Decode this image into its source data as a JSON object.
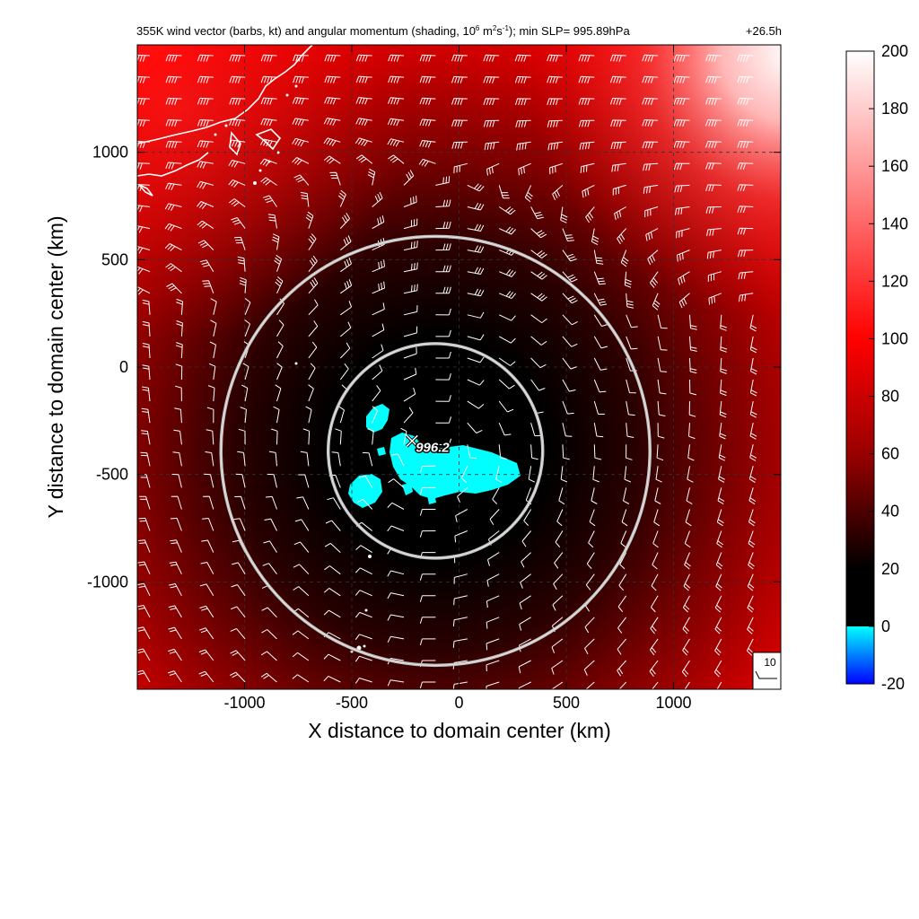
{
  "chart_data": {
    "type": "heatmap",
    "title": {
      "main": "355K wind vector (barbs, kt) and angular momentum (shading, 10",
      "exp1": "6",
      "mid1": " m",
      "exp2": "2",
      "mid2": "s",
      "exp3": "-1",
      "end": "); min SLP= 995.89hPa",
      "time": "+26.5h"
    },
    "xlabel": "X distance to domain center (km)",
    "ylabel": "Y distance to domain center (km)",
    "xlim": [
      -1500,
      1500
    ],
    "ylim": [
      -1500,
      1500
    ],
    "xticks": [
      {
        "value": -1000,
        "label": "-1000"
      },
      {
        "value": -500,
        "label": "-500"
      },
      {
        "value": 0,
        "label": "0"
      },
      {
        "value": 500,
        "label": "500"
      },
      {
        "value": 1000,
        "label": "1000"
      }
    ],
    "yticks": [
      {
        "value": 1000,
        "label": "1000"
      },
      {
        "value": 500,
        "label": "500"
      },
      {
        "value": 0,
        "label": "0"
      },
      {
        "value": -500,
        "label": "-500"
      },
      {
        "value": -1000,
        "label": "-1000"
      }
    ],
    "grid": true,
    "colorbar": {
      "range": [
        -20,
        200
      ],
      "ticks": [
        {
          "value": 200,
          "label": "200"
        },
        {
          "value": 180,
          "label": "180"
        },
        {
          "value": 160,
          "label": "160"
        },
        {
          "value": 140,
          "label": "140"
        },
        {
          "value": 120,
          "label": "120"
        },
        {
          "value": 100,
          "label": "100"
        },
        {
          "value": 80,
          "label": "80"
        },
        {
          "value": 60,
          "label": "60"
        },
        {
          "value": 40,
          "label": "40"
        },
        {
          "value": 20,
          "label": "20"
        },
        {
          "value": 0,
          "label": "0"
        },
        {
          "value": -20,
          "label": "-20"
        }
      ],
      "stops": [
        {
          "value": -20,
          "color": "#0000ff"
        },
        {
          "value": 0,
          "color": "#00ffff"
        },
        {
          "value": 0.01,
          "color": "#000000"
        },
        {
          "value": 20,
          "color": "#000000"
        },
        {
          "value": 60,
          "color": "#990000"
        },
        {
          "value": 100,
          "color": "#ff0000"
        },
        {
          "value": 140,
          "color": "#ff6666"
        },
        {
          "value": 200,
          "color": "#ffffff"
        }
      ]
    },
    "center": {
      "x": -110,
      "y": -390,
      "label": "996.2"
    },
    "circles": [
      {
        "center_x": -110,
        "center_y": -390,
        "radius": 500
      },
      {
        "center_x": -110,
        "center_y": -390,
        "radius": 1000
      }
    ],
    "reference_barb": {
      "label": "10",
      "speed_kt": 10
    },
    "colors": {
      "ring": "#c0c0c0",
      "barb": "#ffffff",
      "coast": "#ffffff",
      "marker_text": "#ffffff"
    }
  }
}
